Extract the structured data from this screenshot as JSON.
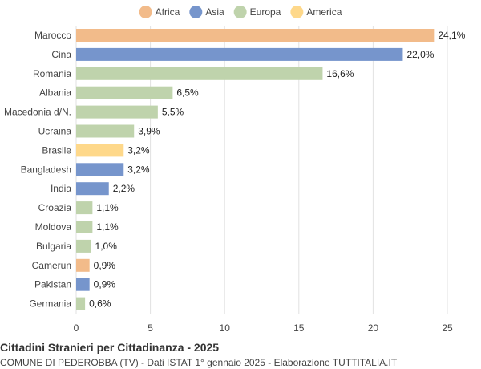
{
  "chart_data": {
    "type": "bar",
    "orientation": "horizontal",
    "title": "Cittadini Stranieri per Cittadinanza - 2025",
    "subtitle": "COMUNE DI PEDEROBBA (TV) - Dati ISTAT 1° gennaio 2025 - Elaborazione TUTTITALIA.IT",
    "xlim": [
      0,
      25
    ],
    "xticks": [
      0,
      5,
      10,
      15,
      20,
      25
    ],
    "grid": true,
    "legend": {
      "placement": "top-center",
      "entries": [
        {
          "name": "Africa",
          "color": "#f2bb8a"
        },
        {
          "name": "Asia",
          "color": "#7695cc"
        },
        {
          "name": "Europa",
          "color": "#bfd3ac"
        },
        {
          "name": "America",
          "color": "#fed88a"
        }
      ]
    },
    "bars": [
      {
        "category": "Marocco",
        "value": 24.1,
        "label": "24,1%",
        "group": "Africa"
      },
      {
        "category": "Cina",
        "value": 22.0,
        "label": "22,0%",
        "group": "Asia"
      },
      {
        "category": "Romania",
        "value": 16.6,
        "label": "16,6%",
        "group": "Europa"
      },
      {
        "category": "Albania",
        "value": 6.5,
        "label": "6,5%",
        "group": "Europa"
      },
      {
        "category": "Macedonia d/N.",
        "value": 5.5,
        "label": "5,5%",
        "group": "Europa"
      },
      {
        "category": "Ucraina",
        "value": 3.9,
        "label": "3,9%",
        "group": "Europa"
      },
      {
        "category": "Brasile",
        "value": 3.2,
        "label": "3,2%",
        "group": "America"
      },
      {
        "category": "Bangladesh",
        "value": 3.2,
        "label": "3,2%",
        "group": "Asia"
      },
      {
        "category": "India",
        "value": 2.2,
        "label": "2,2%",
        "group": "Asia"
      },
      {
        "category": "Croazia",
        "value": 1.1,
        "label": "1,1%",
        "group": "Europa"
      },
      {
        "category": "Moldova",
        "value": 1.1,
        "label": "1,1%",
        "group": "Europa"
      },
      {
        "category": "Bulgaria",
        "value": 1.0,
        "label": "1,0%",
        "group": "Europa"
      },
      {
        "category": "Camerun",
        "value": 0.9,
        "label": "0,9%",
        "group": "Africa"
      },
      {
        "category": "Pakistan",
        "value": 0.9,
        "label": "0,9%",
        "group": "Asia"
      },
      {
        "category": "Germania",
        "value": 0.6,
        "label": "0,6%",
        "group": "Europa"
      }
    ]
  }
}
